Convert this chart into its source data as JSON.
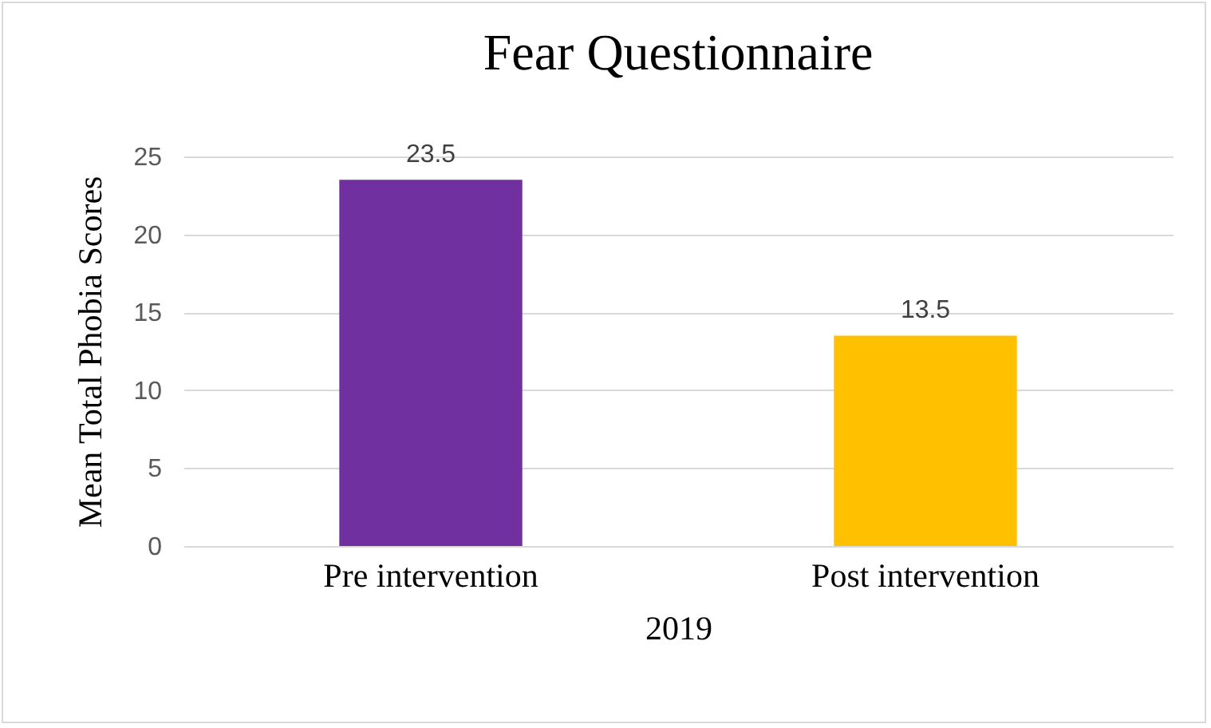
{
  "chart_data": {
    "type": "bar",
    "title": "Fear Questionnaire",
    "xlabel": "2019",
    "ylabel": "Mean Total Phobia Scores",
    "categories": [
      "Pre intervention",
      "Post intervention"
    ],
    "values": [
      23.5,
      13.5
    ],
    "colors": [
      "#7030a0",
      "#ffc000"
    ],
    "ylim": [
      0,
      25
    ],
    "yticks": [
      0,
      5,
      10,
      15,
      20,
      25
    ],
    "grid": "y",
    "data_labels": true
  }
}
